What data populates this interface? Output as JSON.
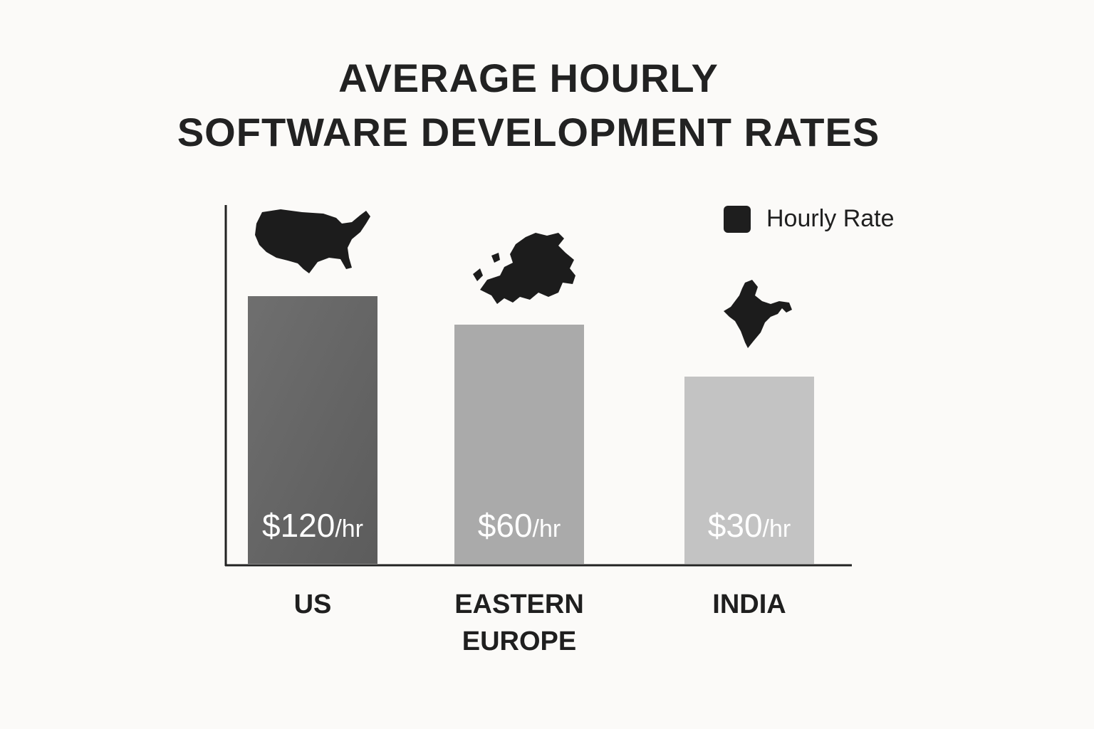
{
  "title": {
    "line1": "AVERAGE HOURLY",
    "line2": "SOFTWARE DEVELOPMENT RATES"
  },
  "legend": {
    "label": "Hourly Rate",
    "color": "#1e1e1e"
  },
  "chart_data": {
    "type": "bar",
    "title": "AVERAGE HOURLY SOFTWARE DEVELOPMENT RATES",
    "xlabel": "",
    "ylabel": "",
    "grid": false,
    "legend_position": "top-right",
    "categories": [
      "US",
      "EASTERN EUROPE",
      "INDIA"
    ],
    "category_lines": [
      [
        "US"
      ],
      [
        "EASTERN",
        "EUROPE"
      ],
      [
        "INDIA"
      ]
    ],
    "values": [
      120,
      60,
      30
    ],
    "value_amounts": [
      "$120",
      "$60",
      "$30"
    ],
    "value_unit": "/hr",
    "bar_colors": [
      "#676767",
      "#aaaaaa",
      "#c3c3c3"
    ],
    "icons": [
      "us-map-icon",
      "europe-map-icon",
      "india-map-icon"
    ],
    "series": [
      {
        "name": "Hourly Rate",
        "values": [
          120,
          60,
          30
        ]
      }
    ]
  }
}
